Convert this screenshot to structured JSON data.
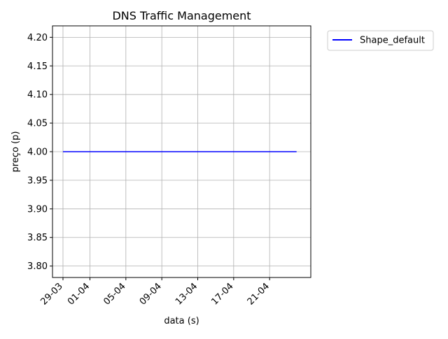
{
  "chart_data": {
    "type": "line",
    "title": "DNS Traffic Management",
    "xlabel": "data (s)",
    "ylabel": "preço (p)",
    "x_ticks": [
      "29-03",
      "01-04",
      "05-04",
      "09-04",
      "13-04",
      "17-04",
      "21-04"
    ],
    "y_ticks": [
      "3.80",
      "3.85",
      "3.90",
      "3.95",
      "4.00",
      "4.05",
      "4.10",
      "4.15",
      "4.20"
    ],
    "ylim": [
      3.78,
      4.22
    ],
    "xlim": [
      "2023-03-27T20:00",
      "2023-04-25T14:00"
    ],
    "grid": true,
    "legend_position": "outside upper-right",
    "series": [
      {
        "name": "Shape_default",
        "color": "#0000ff",
        "x": [
          "2023-03-29",
          "2023-04-24"
        ],
        "y": [
          4.0,
          4.0
        ]
      }
    ]
  }
}
